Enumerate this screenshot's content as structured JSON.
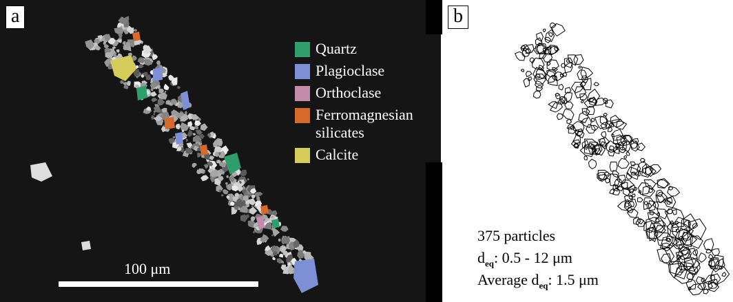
{
  "panel_a": {
    "label": "a",
    "legend": [
      {
        "name": "Quartz",
        "color": "#2f9e6c"
      },
      {
        "name": "Plagioclase",
        "color": "#7d90d6"
      },
      {
        "name": "Orthoclase",
        "color": "#c48aa9"
      },
      {
        "name": "Ferromagnesian silicates",
        "color": "#d66a2c"
      },
      {
        "name": "Calcite",
        "color": "#d6cc5c"
      }
    ],
    "scale_bar": "100 μm"
  },
  "panel_b": {
    "label": "b",
    "count": "375 particles",
    "range": {
      "symbol": "d",
      "subscript": "eq",
      "text": ": 0.5 - 12 μm"
    },
    "average": {
      "prefix": "Average d",
      "subscript": "eq",
      "text": ": 1.5 μm"
    }
  }
}
